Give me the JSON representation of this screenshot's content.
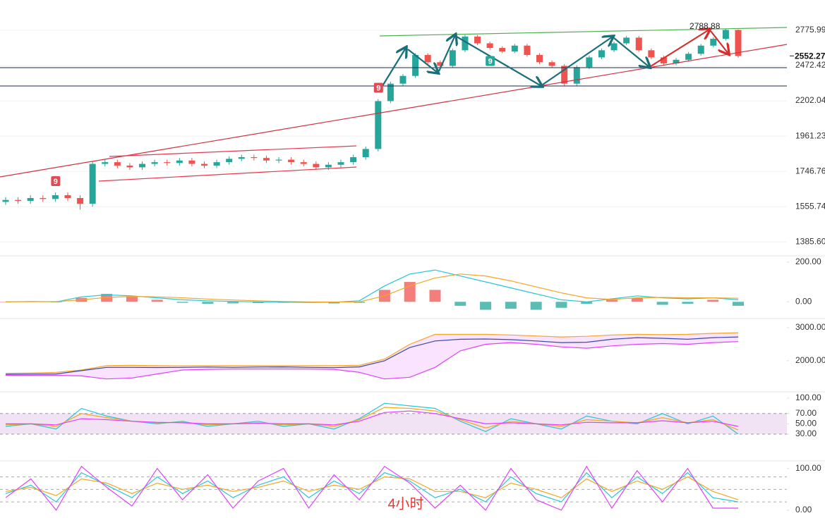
{
  "chart_data": [
    {
      "type": "candlestick",
      "log_scale": true,
      "grid": true,
      "up_color": "#26a69a",
      "down_color": "#ef5350",
      "ylim": [
        1302,
        3067
      ],
      "yticks": [
        {
          "value": 2775.99,
          "label": "2775.99"
        },
        {
          "value": 2472.42,
          "label": "2472.42"
        },
        {
          "value": 2202.04,
          "label": "2202.04"
        },
        {
          "value": 1961.23,
          "label": "1961.23"
        },
        {
          "value": 1746.76,
          "label": "1746.76"
        },
        {
          "value": 1555.74,
          "label": "1555.74"
        },
        {
          "value": 1385.6,
          "label": "1385.60"
        }
      ],
      "open": [
        1580,
        1590,
        1585,
        1600,
        1595,
        1615,
        1600,
        1570,
        1790,
        1800,
        1780,
        1770,
        1790,
        1800,
        1795,
        1810,
        1790,
        1780,
        1800,
        1820,
        1830,
        1825,
        1810,
        1815,
        1800,
        1790,
        1770,
        1785,
        1800,
        1830,
        1880,
        2200,
        2330,
        2390,
        2560,
        2500,
        2470,
        2600,
        2720,
        2660,
        2620,
        2590,
        2640,
        2560,
        2500,
        2470,
        2330,
        2460,
        2540,
        2600,
        2660,
        2710,
        2600,
        2540,
        2490,
        2520,
        2570,
        2640,
        2700,
        2780
      ],
      "high": [
        1605,
        1605,
        1615,
        1615,
        1630,
        1630,
        1615,
        1805,
        1815,
        1815,
        1795,
        1805,
        1815,
        1815,
        1825,
        1825,
        1805,
        1815,
        1835,
        1845,
        1845,
        1840,
        1830,
        1830,
        1815,
        1805,
        1800,
        1815,
        1845,
        1895,
        2215,
        2345,
        2405,
        2575,
        2575,
        2515,
        2615,
        2735,
        2735,
        2675,
        2635,
        2655,
        2655,
        2575,
        2515,
        2485,
        2475,
        2555,
        2615,
        2675,
        2725,
        2725,
        2615,
        2555,
        2535,
        2585,
        2655,
        2715,
        2788.88,
        2785
      ],
      "low": [
        1565,
        1570,
        1570,
        1580,
        1580,
        1585,
        1540,
        1555,
        1775,
        1765,
        1755,
        1755,
        1775,
        1780,
        1780,
        1775,
        1765,
        1765,
        1785,
        1805,
        1810,
        1795,
        1795,
        1785,
        1775,
        1755,
        1755,
        1770,
        1785,
        1815,
        1865,
        2185,
        2315,
        2375,
        2485,
        2455,
        2455,
        2585,
        2645,
        2605,
        2575,
        2575,
        2545,
        2485,
        2455,
        2315,
        2315,
        2445,
        2525,
        2585,
        2645,
        2585,
        2525,
        2475,
        2475,
        2505,
        2555,
        2625,
        2685,
        2537
      ],
      "close": [
        1590,
        1585,
        1600,
        1595,
        1615,
        1600,
        1570,
        1790,
        1800,
        1780,
        1770,
        1790,
        1800,
        1795,
        1810,
        1790,
        1780,
        1800,
        1820,
        1830,
        1825,
        1810,
        1815,
        1800,
        1790,
        1770,
        1785,
        1800,
        1830,
        1880,
        2200,
        2330,
        2390,
        2560,
        2500,
        2470,
        2600,
        2720,
        2660,
        2620,
        2590,
        2640,
        2560,
        2500,
        2470,
        2330,
        2460,
        2540,
        2600,
        2660,
        2710,
        2600,
        2540,
        2490,
        2520,
        2570,
        2640,
        2700,
        2780,
        2552
      ],
      "current_price": 2552.27,
      "high_label": 2788.88,
      "signals": [
        {
          "label": "9",
          "index": 4,
          "side": "above",
          "color": "#e04b55"
        },
        {
          "label": "9",
          "index": 30,
          "side": "above",
          "color": "#e04b55"
        },
        {
          "label": "9",
          "index": 39,
          "side": "below",
          "color": "#26a69a"
        }
      ]
    },
    {
      "type": "macd",
      "ylim": [
        -70,
        210
      ],
      "yticks": [
        {
          "value": 200,
          "label": "200.00"
        },
        {
          "value": 0,
          "label": "0.00"
        }
      ],
      "histogram": [
        0,
        2,
        -3,
        20,
        40,
        25,
        10,
        -5,
        -10,
        -8,
        -6,
        -5,
        -3,
        -8,
        -5,
        60,
        100,
        60,
        -20,
        -40,
        -35,
        -40,
        -30,
        -10,
        10,
        20,
        -15,
        -10,
        10,
        -20
      ],
      "up_color": "#ef5350",
      "down_color": "#26a69a",
      "series": [
        {
          "color": "#26c6da",
          "values": [
            0,
            2,
            0,
            25,
            35,
            30,
            20,
            10,
            5,
            2,
            0,
            -2,
            -3,
            -2,
            5,
            80,
            140,
            160,
            130,
            100,
            70,
            40,
            10,
            0,
            15,
            30,
            20,
            15,
            20,
            10
          ]
        },
        {
          "color": "#f5a623",
          "values": [
            0,
            1,
            1,
            10,
            22,
            27,
            25,
            20,
            14,
            9,
            5,
            2,
            0,
            -1,
            0,
            30,
            80,
            120,
            140,
            130,
            105,
            75,
            45,
            20,
            12,
            20,
            22,
            20,
            20,
            18
          ]
        }
      ]
    },
    {
      "type": "envelope",
      "ylim": [
        1400,
        3150
      ],
      "yticks": [
        {
          "value": 3000,
          "label": "3000.00"
        },
        {
          "value": 2000,
          "label": "2000.00"
        }
      ],
      "fill": "#e040fb",
      "series": [
        {
          "color": "#f5a623",
          "values": [
            1620,
            1630,
            1650,
            1720,
            1850,
            1860,
            1850,
            1845,
            1850,
            1850,
            1850,
            1850,
            1850,
            1850,
            1860,
            2050,
            2500,
            2800,
            2800,
            2800,
            2780,
            2750,
            2720,
            2740,
            2780,
            2800,
            2790,
            2800,
            2830,
            2850
          ]
        },
        {
          "color": "#e040fb",
          "values": [
            1560,
            1560,
            1560,
            1540,
            1450,
            1480,
            1600,
            1720,
            1740,
            1750,
            1750,
            1750,
            1750,
            1740,
            1650,
            1450,
            1500,
            1800,
            2300,
            2500,
            2550,
            2500,
            2420,
            2380,
            2450,
            2500,
            2520,
            2500,
            2550,
            2580
          ]
        },
        {
          "color": "#3949ab",
          "values": [
            1590,
            1597,
            1600,
            1700,
            1800,
            1800,
            1795,
            1800,
            1810,
            1800,
            1810,
            1815,
            1800,
            1790,
            1815,
            2000,
            2400,
            2600,
            2650,
            2660,
            2640,
            2600,
            2550,
            2560,
            2650,
            2700,
            2680,
            2650,
            2700,
            2720
          ]
        }
      ]
    },
    {
      "type": "oscillator",
      "ylim": [
        -3,
        104
      ],
      "yticks": [
        {
          "value": 100,
          "label": "100.00"
        },
        {
          "value": 70,
          "label": "70.00"
        },
        {
          "value": 50,
          "label": "50.00"
        },
        {
          "value": 30,
          "label": "30.00"
        }
      ],
      "band": [
        30,
        70
      ],
      "band_color": "#e1bee7",
      "series": [
        {
          "color": "#26c6da",
          "values": [
            45,
            50,
            40,
            80,
            65,
            55,
            50,
            55,
            45,
            50,
            55,
            45,
            50,
            40,
            60,
            90,
            85,
            80,
            55,
            35,
            60,
            50,
            40,
            65,
            55,
            50,
            70,
            50,
            65,
            30
          ]
        },
        {
          "color": "#f5a623",
          "values": [
            48,
            50,
            45,
            70,
            62,
            55,
            52,
            53,
            48,
            50,
            52,
            48,
            50,
            45,
            58,
            82,
            80,
            75,
            58,
            42,
            55,
            50,
            45,
            58,
            55,
            52,
            62,
            52,
            58,
            38
          ]
        },
        {
          "color": "#e040fb",
          "values": [
            50,
            50,
            48,
            60,
            58,
            55,
            53,
            52,
            50,
            50,
            51,
            50,
            50,
            48,
            55,
            72,
            75,
            70,
            60,
            50,
            52,
            50,
            48,
            53,
            52,
            52,
            56,
            52,
            55,
            45
          ]
        }
      ]
    },
    {
      "type": "oscillator",
      "ylim": [
        -17,
        108
      ],
      "yticks": [
        {
          "value": 100,
          "label": "100.00"
        },
        {
          "value": 0,
          "label": "0.00"
        }
      ],
      "levels": [
        80,
        50,
        20
      ],
      "annotation": "4小时",
      "series": [
        {
          "color": "#26c6da",
          "values": [
            40,
            60,
            20,
            90,
            60,
            30,
            80,
            40,
            70,
            30,
            60,
            80,
            30,
            70,
            40,
            90,
            70,
            30,
            50,
            20,
            80,
            40,
            20,
            90,
            30,
            80,
            40,
            90,
            30,
            20
          ]
        },
        {
          "color": "#f5a623",
          "values": [
            45,
            55,
            35,
            75,
            65,
            40,
            65,
            50,
            60,
            45,
            55,
            70,
            45,
            60,
            50,
            80,
            75,
            45,
            45,
            30,
            65,
            50,
            30,
            75,
            45,
            70,
            50,
            80,
            45,
            25
          ]
        },
        {
          "color": "#e040fb",
          "values": [
            30,
            75,
            0,
            105,
            55,
            10,
            100,
            25,
            85,
            5,
            70,
            100,
            5,
            85,
            25,
            105,
            65,
            5,
            60,
            0,
            100,
            25,
            0,
            105,
            5,
            95,
            20,
            100,
            5,
            5
          ]
        }
      ]
    }
  ]
}
